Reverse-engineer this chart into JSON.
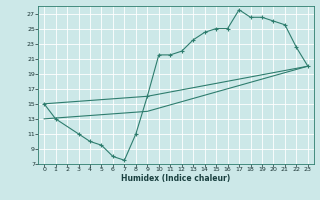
{
  "xlabel": "Humidex (Indice chaleur)",
  "ylabel": "",
  "bg_color": "#cce8e8",
  "grid_color": "#ffffff",
  "line_color": "#2e7d6e",
  "xlim": [
    -0.5,
    23.5
  ],
  "ylim": [
    7,
    28
  ],
  "xticks": [
    0,
    1,
    2,
    3,
    4,
    5,
    6,
    7,
    8,
    9,
    10,
    11,
    12,
    13,
    14,
    15,
    16,
    17,
    18,
    19,
    20,
    21,
    22,
    23
  ],
  "yticks": [
    7,
    9,
    11,
    13,
    15,
    17,
    19,
    21,
    23,
    25,
    27
  ],
  "line1_x": [
    0,
    1,
    3,
    4,
    5,
    6,
    7,
    8,
    9,
    10,
    11,
    12,
    13,
    14,
    15,
    16,
    17,
    18,
    19,
    20,
    21,
    22,
    23
  ],
  "line1_y": [
    15,
    13,
    11,
    10,
    9.5,
    8,
    7.5,
    11,
    16,
    21.5,
    21.5,
    22,
    23.5,
    24.5,
    25,
    25,
    27.5,
    26.5,
    26.5,
    26,
    25.5,
    22.5,
    20
  ],
  "line2_x": [
    0,
    9,
    23
  ],
  "line2_y": [
    15,
    16,
    20
  ],
  "line3_x": [
    0,
    9,
    23
  ],
  "line3_y": [
    13,
    14,
    20
  ]
}
